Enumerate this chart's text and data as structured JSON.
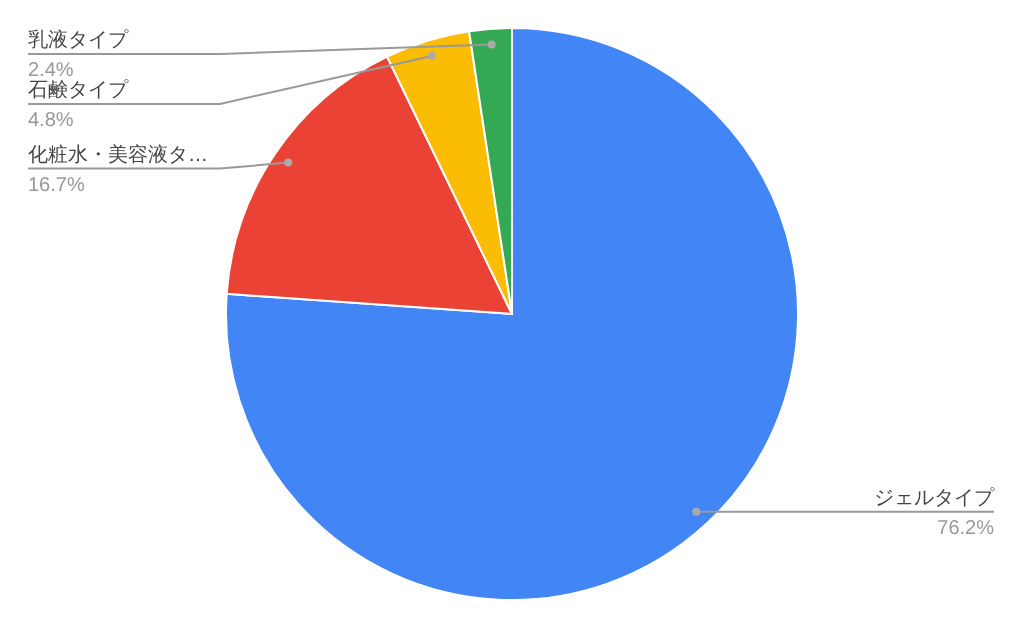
{
  "chart_data": {
    "type": "pie",
    "categories": [
      "ジェルタイプ",
      "化粧水・美容液タ…",
      "石鹸タイプ",
      "乳液タイプ"
    ],
    "values": [
      76.2,
      16.7,
      4.8,
      2.4
    ],
    "colors": [
      "#4285f4",
      "#ea4335",
      "#fbbc04",
      "#34a853"
    ],
    "value_labels": [
      "76.2%",
      "16.7%",
      "4.8%",
      "2.4%"
    ]
  }
}
